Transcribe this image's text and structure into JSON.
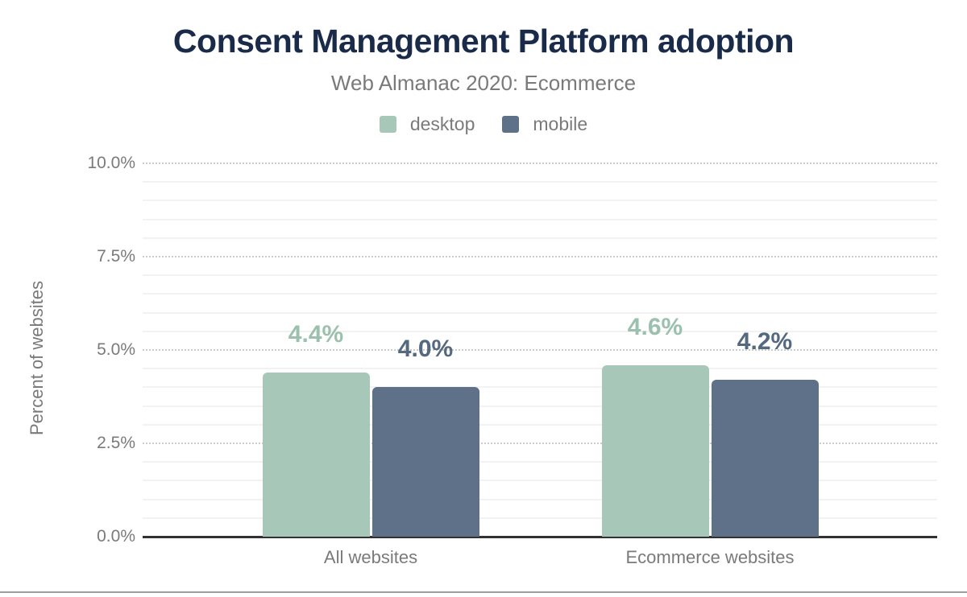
{
  "page": {
    "title": "Consent Management Platform adoption",
    "subtitle": "Web Almanac 2020: Ecommerce"
  },
  "colors": {
    "title_text": "#1a2b49",
    "muted_text": "#7a7a7a",
    "axis_line": "#323232",
    "gridline_major": "#cbcbcb",
    "gridline_minor": "#f2f2f2",
    "footer_rule": "#9d9d9d",
    "desktop": "#a7c8b8",
    "mobile": "#5e7189"
  },
  "chart_data": {
    "type": "bar",
    "title": "Consent Management Platform adoption",
    "subtitle": "Web Almanac 2020: Ecommerce",
    "categories": [
      "All websites",
      "Ecommerce websites"
    ],
    "series": [
      {
        "name": "desktop",
        "color": "#a7c8b8",
        "label_color": "#9cc0ae",
        "values": [
          4.4,
          4.6
        ],
        "value_labels": [
          "4.4%",
          "4.6%"
        ]
      },
      {
        "name": "mobile",
        "color": "#5e7189",
        "label_color": "#54687f",
        "values": [
          4.0,
          4.2
        ],
        "value_labels": [
          "4.0%",
          "4.2%"
        ]
      }
    ],
    "xlabel": "",
    "ylabel": "Percent of websites",
    "ylim": [
      0,
      10
    ],
    "yticks": [
      0,
      2.5,
      5,
      7.5,
      10
    ],
    "ytick_labels": [
      "0.0%",
      "2.5%",
      "5.0%",
      "7.5%",
      "10.0%"
    ],
    "minor_tick_step": 0.5,
    "grid": "major dotted, minor solid",
    "legend_position": "top",
    "data_labels_shown": true
  }
}
